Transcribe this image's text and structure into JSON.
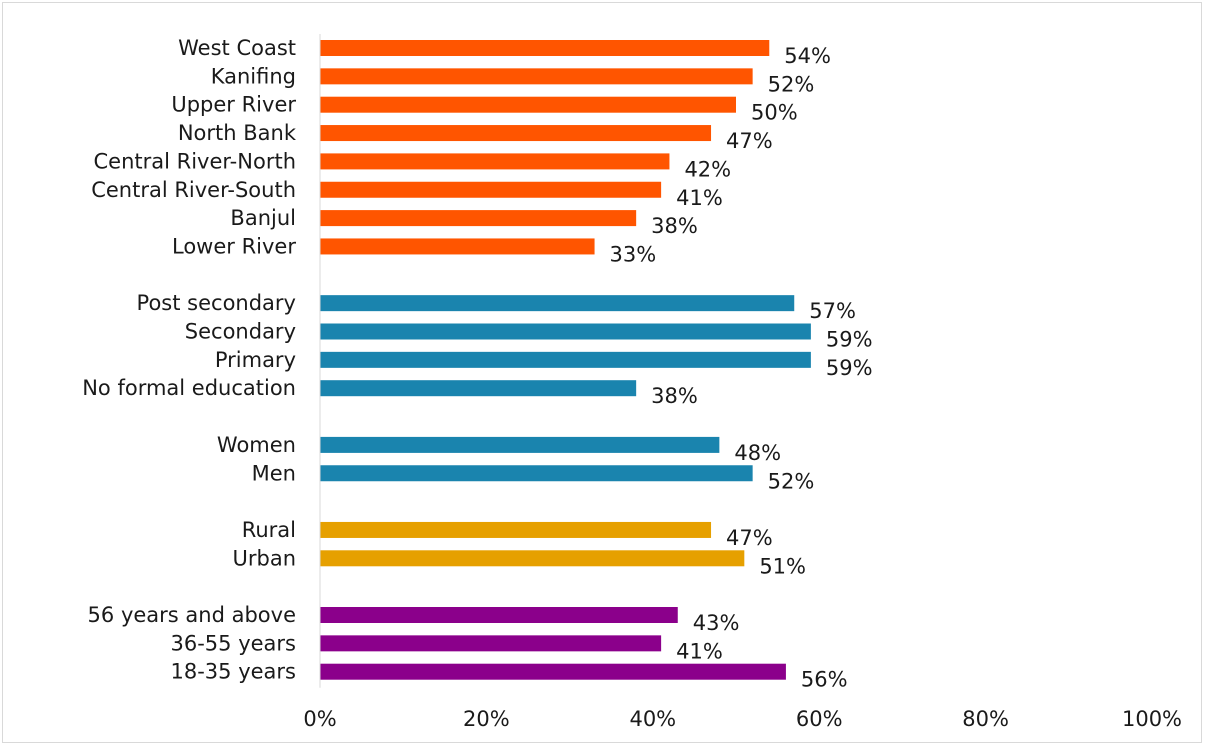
{
  "chart_data": {
    "type": "bar",
    "orientation": "horizontal",
    "title": "",
    "xlabel": "",
    "ylabel": "",
    "xlim": [
      0,
      100
    ],
    "x_ticks": [
      "0%",
      "20%",
      "40%",
      "60%",
      "80%",
      "100%"
    ],
    "grid": false,
    "legend": "none",
    "groups": [
      {
        "color": "#ff5500",
        "bars": [
          {
            "label": "West Coast",
            "value": 54,
            "value_label": "54%"
          },
          {
            "label": "Kanifing",
            "value": 52,
            "value_label": "52%"
          },
          {
            "label": "Upper River",
            "value": 50,
            "value_label": "50%"
          },
          {
            "label": "North Bank",
            "value": 47,
            "value_label": "47%"
          },
          {
            "label": "Central River-North",
            "value": 42,
            "value_label": "42%"
          },
          {
            "label": "Central River-South",
            "value": 41,
            "value_label": "41%"
          },
          {
            "label": "Banjul",
            "value": 38,
            "value_label": "38%"
          },
          {
            "label": "Lower River",
            "value": 33,
            "value_label": "33%"
          }
        ]
      },
      {
        "color": "#1a84ae",
        "bars": [
          {
            "label": "Post secondary",
            "value": 57,
            "value_label": "57%"
          },
          {
            "label": "Secondary",
            "value": 59,
            "value_label": "59%"
          },
          {
            "label": "Primary",
            "value": 59,
            "value_label": "59%"
          },
          {
            "label": "No formal education",
            "value": 38,
            "value_label": "38%"
          }
        ]
      },
      {
        "color": "#1a84ae",
        "bars": [
          {
            "label": "Women",
            "value": 48,
            "value_label": "48%"
          },
          {
            "label": "Men",
            "value": 52,
            "value_label": "52%"
          }
        ]
      },
      {
        "color": "#e6a000",
        "bars": [
          {
            "label": "Rural",
            "value": 47,
            "value_label": "47%"
          },
          {
            "label": "Urban",
            "value": 51,
            "value_label": "51%"
          }
        ]
      },
      {
        "color": "#8b008b",
        "bars": [
          {
            "label": "56 years and above",
            "value": 43,
            "value_label": "43%"
          },
          {
            "label": "36-55 years",
            "value": 41,
            "value_label": "41%"
          },
          {
            "label": "18-35 years",
            "value": 56,
            "value_label": "56%"
          }
        ]
      }
    ]
  }
}
